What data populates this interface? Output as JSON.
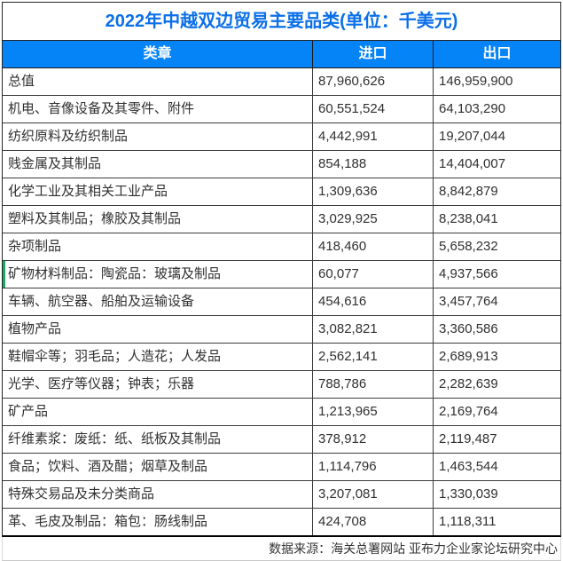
{
  "title": "2022年中越双边贸易主要品类(单位：千美元)",
  "table": {
    "headers": [
      "类章",
      "进口",
      "出口"
    ],
    "highlight_row_index": 7,
    "rows": [
      {
        "label": "总值",
        "import": "87,960,626",
        "export": "146,959,900"
      },
      {
        "label": "机电、音像设备及其零件、附件",
        "import": "60,551,524",
        "export": "64,103,290"
      },
      {
        "label": "纺织原料及纺织制品",
        "import": "4,442,991",
        "export": "19,207,044"
      },
      {
        "label": "贱金属及其制品",
        "import": "854,188",
        "export": "14,404,007"
      },
      {
        "label": "化学工业及其相关工业产品",
        "import": "1,309,636",
        "export": "8,842,879"
      },
      {
        "label": "塑料及其制品；橡胶及其制品",
        "import": "3,029,925",
        "export": "8,238,041"
      },
      {
        "label": "杂项制品",
        "import": "418,460",
        "export": "5,658,232"
      },
      {
        "label": "矿物材料制品：陶瓷品：玻璃及制品",
        "import": "60,077",
        "export": "4,937,566"
      },
      {
        "label": "车辆、航空器、船舶及运输设备",
        "import": "454,616",
        "export": "3,457,764"
      },
      {
        "label": "植物产品",
        "import": "3,082,821",
        "export": "3,360,586"
      },
      {
        "label": "鞋帽伞等；羽毛品；人造花；人发品",
        "import": "2,562,141",
        "export": "2,689,913"
      },
      {
        "label": "光学、医疗等仪器；钟表；乐器",
        "import": "788,786",
        "export": "2,282,639"
      },
      {
        "label": "矿产品",
        "import": "1,213,965",
        "export": "2,169,764"
      },
      {
        "label": "纤维素浆：废纸：纸、纸板及其制品",
        "import": "378,912",
        "export": "2,119,487"
      },
      {
        "label": "食品；饮料、酒及醋；烟草及制品",
        "import": "1,114,796",
        "export": "1,463,544"
      },
      {
        "label": "特殊交易品及未分类商品",
        "import": "3,207,081",
        "export": "1,330,039"
      },
      {
        "label": "革、毛皮及制品：箱包：肠线制品",
        "import": "424,708",
        "export": "1,118,311"
      }
    ]
  },
  "footer": "数据来源：海关总署网站 亚布力企业家论坛研究中心",
  "colors": {
    "title_text": "#0b6fe8",
    "header_bg": "#0584f7",
    "header_text": "#ffffff",
    "row_marker_green": "#21a567",
    "border_dark": "#262626",
    "grid_light": "#d9d9d9",
    "cell_text": "#303030"
  },
  "chart_data": {
    "type": "table",
    "title": "2022年中越双边贸易主要品类(单位：千美元)",
    "columns": [
      "类章",
      "进口",
      "出口"
    ],
    "unit": "千美元",
    "categories": [
      "总值",
      "机电、音像设备及其零件、附件",
      "纺织原料及纺织制品",
      "贱金属及其制品",
      "化学工业及其相关工业产品",
      "塑料及其制品；橡胶及其制品",
      "杂项制品",
      "矿物材料制品：陶瓷品：玻璃及制品",
      "车辆、航空器、船舶及运输设备",
      "植物产品",
      "鞋帽伞等；羽毛品；人造花；人发品",
      "光学、医疗等仪器；钟表；乐器",
      "矿产品",
      "纤维素浆：废纸：纸、纸板及其制品",
      "食品；饮料、酒及醋；烟草及制品",
      "特殊交易品及未分类商品",
      "革、毛皮及制品：箱包：肠线制品"
    ],
    "series": [
      {
        "name": "进口",
        "values": [
          87960626,
          60551524,
          4442991,
          854188,
          1309636,
          3029925,
          418460,
          60077,
          454616,
          3082821,
          2562141,
          788786,
          1213965,
          378912,
          1114796,
          3207081,
          424708
        ]
      },
      {
        "name": "出口",
        "values": [
          146959900,
          64103290,
          19207044,
          14404007,
          8842879,
          8238041,
          5658232,
          4937566,
          3457764,
          3360586,
          2689913,
          2282639,
          2169764,
          2119487,
          1463544,
          1330039,
          1118311
        ]
      }
    ],
    "source_note": "数据来源：海关总署网站 亚布力企业家论坛研究中心"
  }
}
